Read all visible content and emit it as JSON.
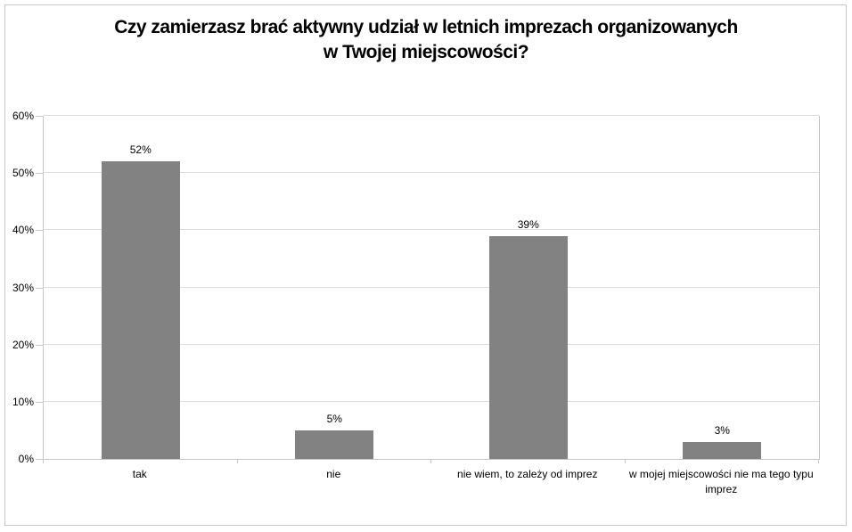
{
  "title": {
    "line1": "Czy zamierzasz brać aktywny udział w letnich imprezach organizowanych",
    "line2": "w Twojej miejscowości?"
  },
  "chart_data": {
    "type": "bar",
    "title": "Czy zamierzasz brać aktywny udział w letnich imprezach organizowanych w Twojej miejscowości?",
    "categories": [
      "tak",
      "nie",
      "nie wiem, to zależy od imprez",
      "w mojej miejscowości nie ma tego typu imprez"
    ],
    "values": [
      52,
      5,
      39,
      3
    ],
    "value_labels": [
      "52%",
      "5%",
      "39%",
      "3%"
    ],
    "unit": "%",
    "xlabel": "",
    "ylabel": "",
    "ylim": [
      0,
      60
    ],
    "ytick_step": 10,
    "ytick_labels": [
      "0%",
      "10%",
      "20%",
      "30%",
      "40%",
      "50%",
      "60%"
    ],
    "grid": "horizontal",
    "legend": "none"
  },
  "colors": {
    "background": "#ffffff",
    "frame_border": "#c9c9c9",
    "bar_fill": "#828282",
    "gridline": "#dcdcdc",
    "axis_line": "#c6c6c6",
    "text": "#000000"
  }
}
